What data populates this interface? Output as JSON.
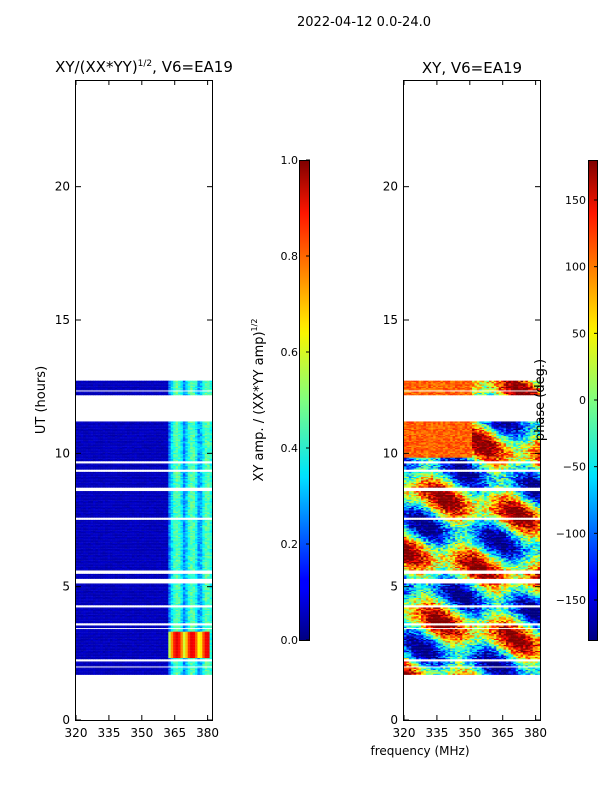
{
  "figure": {
    "suptitle": "2022-04-12 0.0-24.0",
    "xlabel": "frequency (MHz)"
  },
  "chart_data": [
    {
      "type": "heatmap",
      "title": "XY/(XX*YY)",
      "title_sup": "1/2",
      "title_suffix": ", V6=EA19",
      "xlabel": "",
      "ylabel": "UT (hours)",
      "xlim": [
        320,
        382
      ],
      "ylim": [
        0,
        24
      ],
      "xticks": [
        320,
        335,
        350,
        365,
        380
      ],
      "yticks": [
        0,
        5,
        10,
        15,
        20
      ],
      "colorbar": {
        "label": "XY amp. / (XX*YY amp)",
        "label_sup": "1/2",
        "range": [
          0.0,
          1.0
        ],
        "ticks": [
          "0.0",
          "0.2",
          "0.4",
          "0.6",
          "0.8",
          "1.0"
        ],
        "tick_values": [
          0.0,
          0.2,
          0.4,
          0.6,
          0.8,
          1.0
        ],
        "colormap": "jet"
      },
      "data_time_range_hours": [
        1.7,
        12.7
      ],
      "gaps_hours": [
        [
          12.3,
          12.35
        ],
        [
          11.2,
          12.2
        ],
        [
          9.6,
          9.7
        ],
        [
          9.3,
          9.4
        ],
        [
          8.6,
          8.7
        ],
        [
          7.5,
          7.6
        ],
        [
          5.5,
          5.6
        ],
        [
          5.1,
          5.3
        ],
        [
          4.2,
          4.3
        ],
        [
          3.55,
          3.62
        ],
        [
          3.4,
          3.45
        ],
        [
          2.2,
          2.3
        ],
        [
          1.95,
          2.0
        ]
      ],
      "bright_band_mhz": [
        362,
        382
      ],
      "peak_region": {
        "freq_mhz": [
          362,
          380
        ],
        "time_hours": [
          2.3,
          3.3
        ],
        "value": 0.9
      }
    },
    {
      "type": "heatmap",
      "title": "XY, V6=EA19",
      "xlabel": "frequency (MHz)",
      "ylabel": "",
      "xlim": [
        320,
        382
      ],
      "ylim": [
        0,
        24
      ],
      "xticks": [
        320,
        335,
        350,
        365,
        380
      ],
      "yticks": [
        0,
        5,
        10,
        15,
        20
      ],
      "colorbar": {
        "label": "phase (deg.)",
        "range": [
          -180,
          180
        ],
        "ticks": [
          "150",
          "100",
          "50",
          "0",
          "−50",
          "−100",
          "−150"
        ],
        "tick_values": [
          150,
          100,
          50,
          0,
          -50,
          -100,
          -150
        ],
        "colormap": "jet"
      },
      "data_time_range_hours": [
        1.7,
        12.7
      ],
      "gaps_hours": [
        [
          12.3,
          12.35
        ],
        [
          11.2,
          12.2
        ],
        [
          9.6,
          9.7
        ],
        [
          9.3,
          9.4
        ],
        [
          8.6,
          8.7
        ],
        [
          7.5,
          7.6
        ],
        [
          5.5,
          5.6
        ],
        [
          5.1,
          5.3
        ],
        [
          4.2,
          4.3
        ],
        [
          3.55,
          3.62
        ],
        [
          3.4,
          3.45
        ],
        [
          2.2,
          2.3
        ],
        [
          1.95,
          2.0
        ]
      ]
    }
  ]
}
